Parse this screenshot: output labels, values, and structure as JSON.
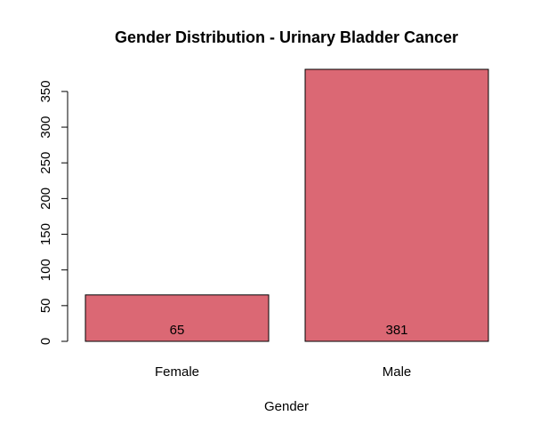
{
  "chart_data": {
    "type": "bar",
    "title": "Gender Distribution - Urinary Bladder Cancer",
    "xlabel": "Gender",
    "ylabel": "",
    "categories": [
      "Female",
      "Male"
    ],
    "values": [
      65,
      381
    ],
    "data_labels": [
      "65",
      "381"
    ],
    "yticks": [
      0,
      50,
      100,
      150,
      200,
      250,
      300,
      350
    ],
    "ytick_labels": [
      "0",
      "50",
      "100",
      "150",
      "200",
      "250",
      "300",
      "350"
    ],
    "ylim": [
      0,
      381
    ],
    "bar_color": "#db6874",
    "grid": false,
    "legend": "none"
  }
}
